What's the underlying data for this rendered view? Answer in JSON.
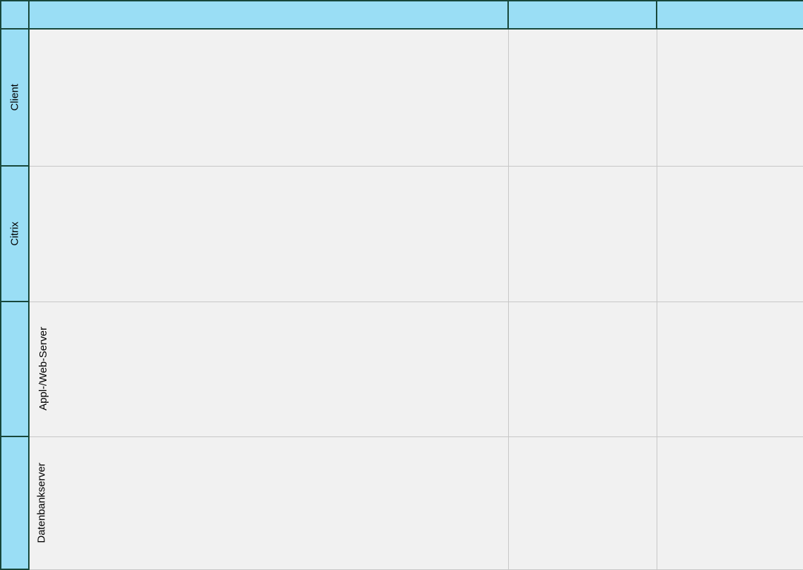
{
  "swimlane_table": {
    "description": "Empty cross-functional flowchart grid with one unlabeled header row, three unlabeled columns and four horizontal lanes",
    "header_cells": [
      {
        "label": ""
      },
      {
        "label": ""
      },
      {
        "label": ""
      }
    ],
    "lanes": [
      {
        "label": "Client"
      },
      {
        "label": "Citrix"
      },
      {
        "label": "Appl-/Web-Server"
      },
      {
        "label": "Datenbankserver"
      }
    ],
    "colors": {
      "lane_header_fill": "#9adef5",
      "lane_header_border": "#17473a",
      "content_cell_fill": "#f1f1f1",
      "grid_line": "#c7c7c7",
      "label_text": "#000000"
    }
  }
}
